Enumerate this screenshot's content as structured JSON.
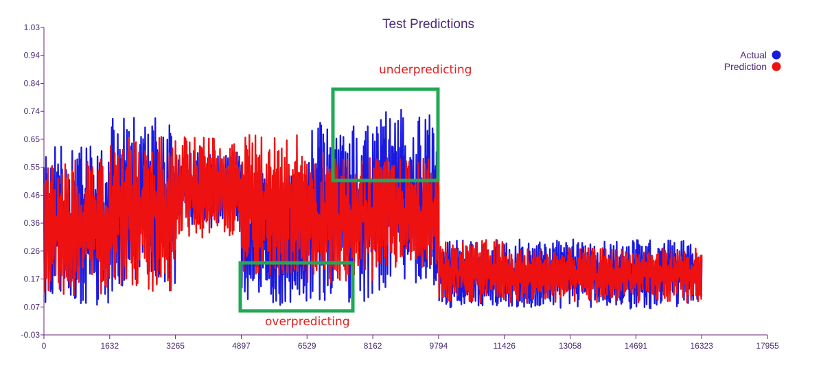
{
  "chart_data": {
    "type": "line",
    "title": "Test Predictions",
    "xlabel": "",
    "ylabel": "",
    "xlim": [
      0,
      17955
    ],
    "ylim": [
      -0.03,
      1.03
    ],
    "x_ticks": [
      "0",
      "1632",
      "3265",
      "4897",
      "6529",
      "8162",
      "9794",
      "11426",
      "13058",
      "14691",
      "16323",
      "17955"
    ],
    "y_ticks": [
      "1.03",
      "0.94",
      "0.84",
      "0.74",
      "0.65",
      "0.55",
      "0.46",
      "0.36",
      "0.26",
      "0.17",
      "0.07",
      "-0.03"
    ],
    "x_range_of_series": [
      0,
      16323
    ],
    "grid": false,
    "legend_position": "top-right",
    "series": [
      {
        "name": "Actual",
        "color": "#1a1adf",
        "segments": [
          [
            0,
            16323,
            0.07,
            0.62
          ],
          [
            1632,
            3265,
            0.12,
            0.72
          ],
          [
            3265,
            4897,
            0.34,
            0.6
          ],
          [
            4897,
            6529,
            0.07,
            0.55
          ],
          [
            6529,
            8162,
            0.08,
            0.72
          ],
          [
            8162,
            9794,
            0.12,
            0.75
          ],
          [
            9794,
            11426,
            0.06,
            0.3
          ],
          [
            11426,
            16323,
            0.06,
            0.3
          ]
        ]
      },
      {
        "name": "Prediction",
        "color": "#ee1111",
        "segments": [
          [
            0,
            1632,
            0.1,
            0.58
          ],
          [
            1632,
            3265,
            0.12,
            0.66
          ],
          [
            3265,
            4897,
            0.3,
            0.66
          ],
          [
            4897,
            6529,
            0.17,
            0.66
          ],
          [
            6529,
            8162,
            0.15,
            0.6
          ],
          [
            8162,
            9794,
            0.2,
            0.58
          ],
          [
            9794,
            11426,
            0.08,
            0.3
          ],
          [
            11426,
            16323,
            0.08,
            0.27
          ]
        ]
      }
    ],
    "annotations": [
      {
        "text": "underpredicting",
        "color": "#e02020"
      },
      {
        "text": "overpredicting",
        "color": "#e02020"
      }
    ],
    "highlight_boxes": [
      {
        "x_range": [
          7150,
          9770
        ],
        "y_range": [
          0.54,
          0.82
        ],
        "color": "#22a855"
      },
      {
        "x_range": [
          4950,
          7770
        ],
        "y_range": [
          0.05,
          0.22
        ],
        "color": "#22a855"
      }
    ]
  },
  "colors": {
    "axis": "#6b1f7a",
    "text": "#4b2a72",
    "highlight": "#22a855"
  }
}
